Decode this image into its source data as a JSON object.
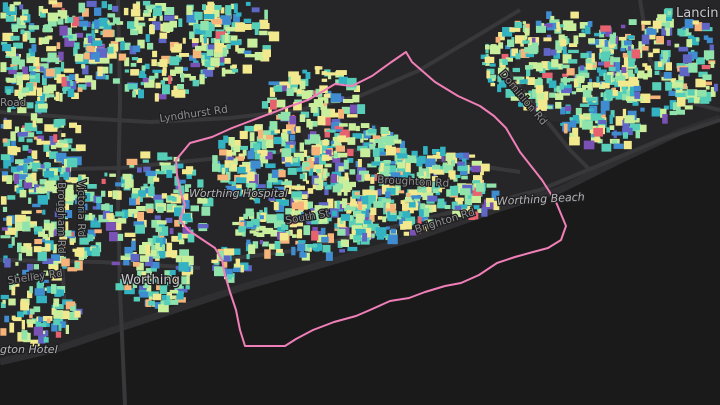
{
  "map": {
    "palette": [
      "#f2e98f",
      "#c9ef9d",
      "#8fe3ab",
      "#57cfb8",
      "#33b3c2",
      "#3f8cd0",
      "#5f66c6",
      "#7a52b5",
      "#f6b37a",
      "#e8616f"
    ],
    "colors": {
      "land": "#262628",
      "water": "#1a1a1b",
      "road": "#38383b",
      "boundary": "#f07fb8"
    },
    "labels": {
      "worthing": "Worthing",
      "worthing_beach": "Worthing Beach",
      "worthing_hospital": "Worthing Hospital",
      "broughton_road": "Broughton Rd",
      "brighton_road": "Brighton Rd",
      "south_street": "South St",
      "shelley_road": "Shelley Rd",
      "hotel": "gton Hotel",
      "lancing": "Lancin",
      "upper_left_road": "Road",
      "lyndhurst_road": "Lyndhurst Rd",
      "victoria_road": "Victoria Rd",
      "dominion_road": "Dominion Rd",
      "brougham_road": "Brougham Rd"
    }
  }
}
